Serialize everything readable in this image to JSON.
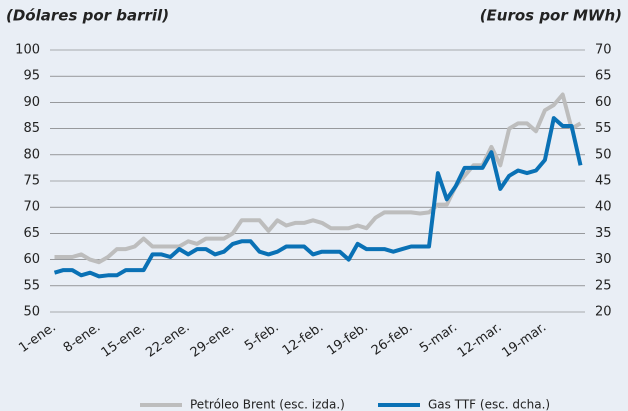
{
  "chart_data": {
    "type": "line",
    "y_label": "(Dólares por barril)",
    "y2_label": "(Euros por MWh)",
    "categories": [
      "1-ene.",
      null,
      null,
      null,
      null,
      "8-ene.",
      null,
      null,
      null,
      null,
      "15-ene.",
      null,
      null,
      null,
      null,
      "22-ene.",
      null,
      null,
      null,
      null,
      "29-ene.",
      null,
      null,
      null,
      null,
      "5-feb.",
      null,
      null,
      null,
      null,
      "12-feb.",
      null,
      null,
      null,
      null,
      "19-feb.",
      null,
      null,
      null,
      null,
      "26-feb.",
      null,
      null,
      null,
      null,
      "5-mar.",
      null,
      null,
      null,
      null,
      "12-mar.",
      null,
      null,
      null,
      null,
      "19-mar.",
      null,
      null,
      null,
      null
    ],
    "series": [
      {
        "name": "Petróleo Brent (esc. izda.)",
        "color": "#bdbdbd",
        "axis": "y",
        "values": [
          60.5,
          60.5,
          60.5,
          61,
          60,
          59.5,
          60.5,
          62,
          62,
          62.5,
          64,
          62.5,
          62.5,
          62.5,
          62.5,
          63.5,
          63,
          64,
          64,
          64,
          65,
          67.5,
          67.5,
          67.5,
          65.5,
          67.5,
          66.5,
          67,
          67,
          67.5,
          67,
          66,
          66,
          66,
          66.5,
          66,
          68,
          69,
          69,
          69,
          69,
          68.8,
          69,
          70.5,
          70.5,
          74,
          76,
          78,
          78,
          81.5,
          78,
          85,
          86,
          86,
          84.5,
          88.5,
          89.5,
          91.5,
          85,
          86
        ]
      },
      {
        "name": "Gas TTF (esc. dcha.)",
        "color": "#0a71b5",
        "axis": "y2",
        "values": [
          27.5,
          28,
          28,
          27,
          27.5,
          26.8,
          27,
          27,
          28,
          28,
          28,
          31,
          31,
          30.5,
          32,
          31,
          32,
          32,
          31,
          31.5,
          33,
          33.5,
          33.5,
          31.5,
          31,
          31.5,
          32.5,
          32.5,
          32.5,
          31,
          31.5,
          31.5,
          31.5,
          30,
          33,
          32,
          32,
          32,
          31.5,
          32,
          32.5,
          32.5,
          32.5,
          46.5,
          41.5,
          44,
          47.5,
          47.5,
          47.5,
          50.5,
          43.5,
          46,
          47,
          46.5,
          47,
          49,
          57,
          55.5,
          55.5,
          48
        ]
      }
    ],
    "ylim": [
      50,
      100
    ],
    "yticks": [
      50,
      55,
      60,
      65,
      70,
      75,
      80,
      85,
      90,
      95,
      100
    ],
    "y2lim": [
      20,
      70
    ],
    "y2ticks": [
      20,
      25,
      30,
      35,
      40,
      45,
      50,
      55,
      60,
      65,
      70
    ],
    "grid": true,
    "legend": "bottom"
  }
}
